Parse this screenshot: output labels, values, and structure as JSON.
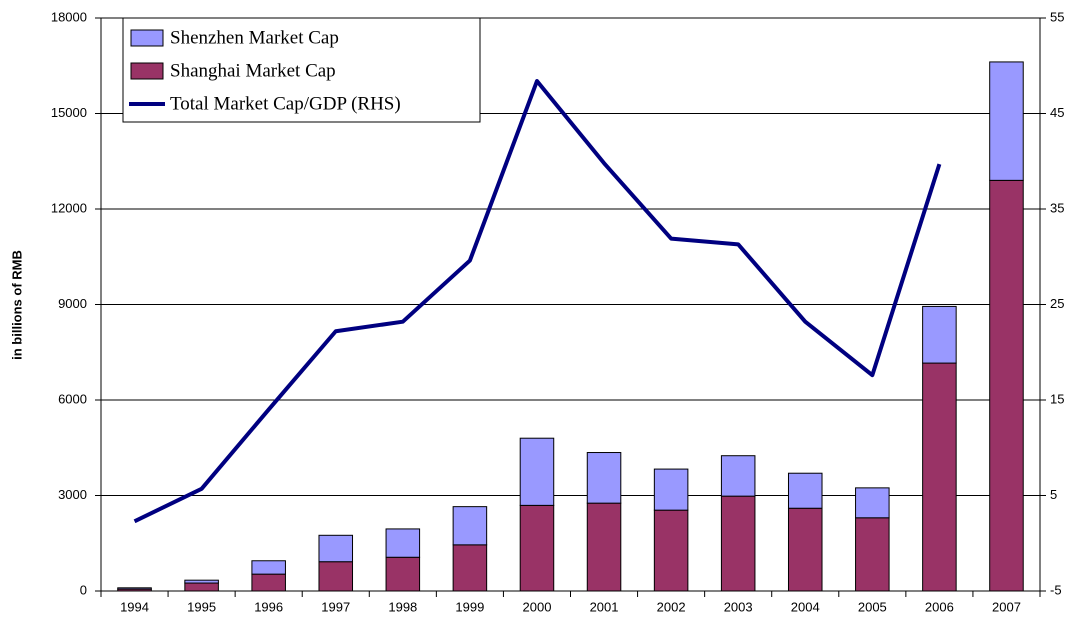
{
  "chart_data": {
    "type": "bar",
    "y_label": "in billions of RMB",
    "categories": [
      "1994",
      "1995",
      "1996",
      "1997",
      "1998",
      "1999",
      "2000",
      "2001",
      "2002",
      "2003",
      "2004",
      "2005",
      "2006",
      "2007"
    ],
    "series": [
      {
        "name": "Shanghai Market Cap",
        "type": "bar",
        "color": "#993366",
        "values": [
          60,
          250,
          530,
          920,
          1060,
          1450,
          2690,
          2760,
          2540,
          2980,
          2600,
          2300,
          7160,
          12900
        ]
      },
      {
        "name": "Shenzhen Market Cap",
        "type": "bar",
        "color": "#9999ff",
        "values": [
          40,
          90,
          420,
          830,
          890,
          1200,
          2110,
          1590,
          1290,
          1270,
          1100,
          940,
          1780,
          3720
        ]
      },
      {
        "name": "Total Market Cap/GDP (RHS)",
        "type": "line",
        "axis": "y2",
        "color": "#000080",
        "values": [
          2.3,
          5.7,
          14,
          22.2,
          23.2,
          29.6,
          48.4,
          39.8,
          31.9,
          31.3,
          23.2,
          17.6,
          39.7,
          null
        ]
      }
    ],
    "ylim": [
      0,
      18000
    ],
    "yticks": [
      0,
      3000,
      6000,
      9000,
      12000,
      15000,
      18000
    ],
    "y2lim": [
      -5,
      55
    ],
    "y2ticks": [
      -5,
      5,
      15,
      25,
      35,
      45,
      55
    ],
    "grid": true,
    "legend": "upper left"
  }
}
